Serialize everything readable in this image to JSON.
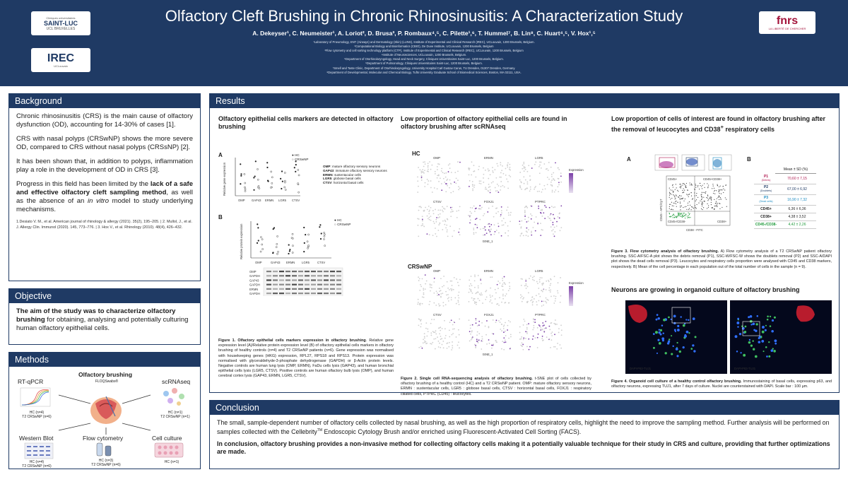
{
  "header": {
    "title": "Olfactory Cleft Brushing in Chronic Rhinosinusitis: A Characterization Study",
    "authors": "A. Dekeyser¹, C. Neumeister¹, A. Loriot², D. Brusa³, P. Rombaux⁴,⁵, C. Pilette¹,⁶, T. Hummel⁷, B. Lin⁸, C. Huart⁴,⁵, V. Hox¹,⁵",
    "affiliations": [
      "¹Laboratory of Pneumology, ENT (Airways) and Dermatology (Skin) (LUNS), Institute of Experimental and Clinical Research (IREC), UCLouvain, 1200 Brussels, Belgium.",
      "²Computational Biology and Bioinformatics (CBIO), De Duve Institute, UCLouvain, 1200 Brussels, Belgium",
      "³Flow cytometry and cell sorting technology platform (CTP), Institute of Experimental and Clinical Research (IREC), UCLouvain, 1200 Brussels, Belgium",
      "⁴Institute of Neurosciences, UCLouvain, 1200 Brussels, Belgium.",
      "⁵Department of Otorhinolaryngology, Head and Neck Surgery, Cliniques Universitaires Saint-Luc, 1200 Brussels, Belgium.",
      "⁶Department of Pulmonology, Cliniques Universitaires Saint-Luc, 1200 Brussels, Belgium.",
      "⁷Smell and Taste Clinic, Department of Otorhinolaryngology, University Hospital Carl Gustav Carus, TU Dresden, 01307 Dresden, Germany.",
      "⁸Department of Developmental, Molecular and Chemical Biology, Tufts University Graduate School of Biomedical Sciences, Boston, MA 02111, USA."
    ],
    "logos": {
      "saint_luc_line1": "Cliniques universitaires",
      "saint_luc_line2": "SAINT-LUC",
      "saint_luc_line3": "UCL BRUXELLES",
      "irec": "IREC",
      "irec_sub": "UCLouvain",
      "fnrs": "fnrs",
      "fnrs_sub": "LA LIBERTÉ DE CHERCHER"
    }
  },
  "background": {
    "heading": "Background",
    "p1": "Chronic rhinosinusitis (CRS) is the main cause of olfactory dysfunction (OD), accounting for 14-30% of cases [1].",
    "p2": "CRS with nasal polyps (CRSwNP) shows the more severe OD, compared to CRS without nasal polyps (CRSsNP) [2].",
    "p3": "It has been shown that, in addition to polyps, inflammation play a role in the development of OD in CRS [3].",
    "p4_a": "Progress in this field has been limited by the ",
    "p4_b": "lack of a safe and effective olfactory cleft sampling method",
    "p4_c": ", as well as the absence of an ",
    "p4_d": "in vitro",
    "p4_e": " model to study underlying mechanisms.",
    "refs": "1.Desiato V. M., et al. American journal of rhinology & allergy (2021). 35(2), 195–205. | 2. Mullol, J., et al. J. Allergy Clin. Immunol (2020). 145, 773–776. | 3. Hox V., et al. Rhinology (2010). 48(4), 426–432."
  },
  "objective": {
    "heading": "Objective",
    "text_bold": "The aim of the study was to characterize olfactory brushing",
    "text_rest": " for obtaining, analysing and potentially culturing human olfactory epithelial cells."
  },
  "methods": {
    "heading": "Methods",
    "center_title": "Olfactory brushing",
    "center_sub": "FLOQSwabs®",
    "rtqpcr": "RT-qPCR",
    "rtqpcr_n": "HC (n=4)\nT2 CRSwNP (n=6)",
    "scrnaseq": "scRNAseq",
    "scrnaseq_n": "HC (n=1)\nT2 CRSwNP (n=1)",
    "western": "Western Blot",
    "western_n": "HC (n=4)\nT2 CRSwNP (n=6)",
    "flow": "Flow cytometry",
    "flow_n": "HC (n=3)\nT2 CRSwNP (n=6)",
    "culture": "Cell culture",
    "culture_n": "HC (n=1)"
  },
  "results": {
    "heading": "Results",
    "col1_title": "Olfactory epithelial cells markers are detected in olfactory brushing",
    "col2_title": "Low proportion of olfactory epithelial cells are found in olfactory brushing after scRNAseq",
    "col3_title_a": "Low proportion of cells of interest are found in olfactory brushing after the removal of leucocytes and CD38",
    "col3_title_sup": "+",
    "col3_title_b": " respiratory cells",
    "col3b_title": "Neurons are growing in organoid culture of olfactory brushing",
    "legend_hc": "HC",
    "legend_crs": "CRSwNP",
    "y_label_a": "Relative gene expression",
    "y_label_b": "Relative protein expression",
    "markers": [
      "OMP",
      "GAP43",
      "ERMN",
      "LGR5",
      "CTSV"
    ],
    "marker_legend": [
      {
        "name": "OMP",
        "desc": ": mature olfactory sensory neurons"
      },
      {
        "name": "GAP43",
        "desc": ": immature olfactory sensory neurons"
      },
      {
        "name": "ERMN",
        "desc": ": sustentacular cells"
      },
      {
        "name": "LGR5",
        "desc": ": globose basal cells"
      },
      {
        "name": "CTSV",
        "desc": ": horizontal basal cells"
      }
    ],
    "blot_rows": [
      "OMP",
      "GAPDH",
      "GAP43",
      "GAPDH",
      "ERMN",
      "GAPDH",
      "LGR5",
      "GAPDH",
      "CTSV",
      "β-actin"
    ],
    "blot_cols": [
      "CTRL+",
      "CTRL-",
      "CRSwNP",
      "HCs"
    ],
    "fig1_caption_bold": "Figure 1. Olfactory epithelial cells markers expression in olfactory brushing",
    "fig1_caption": ". Relative gene expression level (A)/Relative protein expression level (B) of olfactory epithelial cells markers in olfactory brushing of healthy controls (n=4) and T2 CRSwNP patients (n=6). Gene expression was normalised with housekeeping genes (HKG) expression, RPL27, RPS18 and RPS13. Protein expression was normalised with glyceraldehyde-3-phosphate dehydrogenase (GAPDH) or β-Actin protein levels. Negative controls are human lung lysis (OMP, ERMN), FaDu cells lysis (GAP43), and human bronchial epithelial cells lysis (LGR5, CTSV). Positive controls are human olfactory bulb lysis (OMP), and human cerebral cortex lysis (GAP43, ERMN, LGR5, CTSV).",
    "hc_label": "HC",
    "crswnp_label": "CRSwNP",
    "tsne_genes": [
      "OMP",
      "ERMN",
      "LGR5",
      "CTSV",
      "FOXJ1",
      "PTPRC"
    ],
    "expression_label": "Expression",
    "tsne_x": "tSNE_1",
    "tsne_y": "tSNE_2",
    "fig2_caption_bold": "Figure 2. Single cell RNA-sequencing analysis of olfactory brushing.",
    "fig2_caption": " t-SNE plot of cells collected by olfactory brushing of a healthy control (HC) and a T2 CRSwNP patient. OMP: mature olfactory sensory neurons, ERMN : sustentacular cells, LGR5 : globose basal cells, CTSV : horizontal basal cells, FOXJ1 : respiratory ciliated cells, PTPRC (CD45) : leucocytes.",
    "flow_gates": [
      "CD45+",
      "CD45+CD38+",
      "CD38+",
      "CD45-/CD38-"
    ],
    "flow_x": "CD38 - FITC",
    "flow_y": "CD45 - APC/Cy7",
    "table_header": "Mean ± SD (%)",
    "table_rows": [
      {
        "label": "P1",
        "sub": "(Debris)",
        "value": "70,60 ± 7,15",
        "color": "#b01850"
      },
      {
        "label": "P2",
        "sub": "(Doublets)",
        "value": "67,00 ± 6,92",
        "color": "#1f3a64"
      },
      {
        "label": "P3",
        "sub": "(Dead cells)",
        "value": "16,90 ± 7,32",
        "color": "#1a8ac0"
      },
      {
        "label": "CD45+",
        "sub": "",
        "value": "6,36 ± 6,36",
        "color": "#222222"
      },
      {
        "label": "CD38+",
        "sub": "",
        "value": "4,38 ± 3,52",
        "color": "#222222"
      },
      {
        "label": "CD45-/CD38-",
        "sub": "",
        "value": "4,42 ± 2,26",
        "color": "#1e9a3a"
      }
    ],
    "fig3_caption_bold": "Figure 3. Flow cytometry analysis of olfactory brushing.",
    "fig3_caption": " A) Flow cytometry analysis of a T2 CRSwNP patient olfactory brushing. SSC-A/FSC-A plot shows the debris removal (P1), SSC-W/FSC-W shows the doublets removal (P2) and SSC-A/DAPI plot shows the dead cells removal (P3). Leucocytes and respiratory cells proportion were analysed with CD45 and CD38 markers, respectively. B) Mean of the cell percentage in each population out of the total number of cells in the sample (n = 9).",
    "organoid_label_1": "DAPI-P63-TUJ1",
    "organoid_label_2": "DAPI-P63-TUJ1",
    "fig4_caption_bold": "Figure 4. Organoid cell culture of a healthy control olfactory brushing.",
    "fig4_caption": " Immunostaining of basal cells, expressing p63, and olfactory neurons, expressing TUJ1, after 7 days of culture. Nuclei are counterstained with DAPI. Scale bar : 100 µm."
  },
  "conclusion": {
    "heading": "Conclusion",
    "p1_a": "The small, sample-dependent number of olfactory cells collected by nasal brushing, as well as the high proportion of respiratory cells, highlight the need to improve the sampling method. Further analysis will be performed on samples collected with the Cellebrity",
    "p1_tm": "TM",
    "p1_b": " Endoscopic Cytology Brush and/or enriched using Fluorescent-Activated Cell Sorting (FACS).",
    "p2": "In conclusion, olfactory brushing provides a non-invasive method for collecting olfactory cells making it a potentially valuable technique for their study in CRS and culture, providing that further optimizations are made."
  },
  "colors": {
    "navy": "#1f3a64",
    "brand_red": "#a3123a",
    "tsne_purple": "#7b3fa8"
  }
}
